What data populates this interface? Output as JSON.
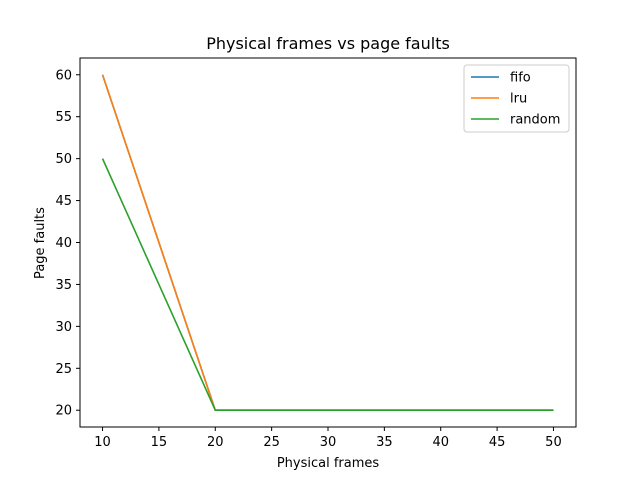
{
  "chart_data": {
    "type": "line",
    "title": "Physical frames vs page faults",
    "xlabel": "Physical frames",
    "ylabel": "Page faults",
    "x": [
      10,
      20,
      30,
      40,
      50
    ],
    "series": [
      {
        "name": "fifo",
        "values": [
          60,
          20,
          20,
          20,
          20
        ],
        "color": "#1f77b4"
      },
      {
        "name": "lru",
        "values": [
          60,
          20,
          20,
          20,
          20
        ],
        "color": "#ff7f0e"
      },
      {
        "name": "random",
        "values": [
          50,
          20,
          20,
          20,
          20
        ],
        "color": "#2ca02c"
      }
    ],
    "xlim": [
      8,
      52
    ],
    "ylim": [
      18,
      62
    ],
    "xticks": [
      10,
      15,
      20,
      25,
      30,
      35,
      40,
      45,
      50
    ],
    "yticks": [
      20,
      25,
      30,
      35,
      40,
      45,
      50,
      55,
      60
    ],
    "grid": false,
    "legend_position": "top-right"
  }
}
